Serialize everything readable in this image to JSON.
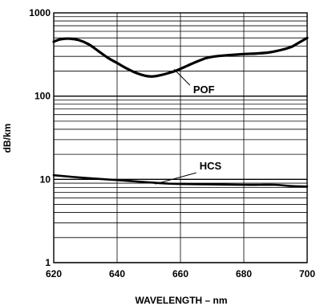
{
  "chart_data": {
    "type": "line",
    "xlabel": "WAVELENGTH – nm",
    "ylabel": "dB/km",
    "xlim": [
      620,
      700
    ],
    "ylim": [
      1,
      1000
    ],
    "y_scale": "log",
    "x_ticks": [
      620,
      640,
      660,
      680,
      700
    ],
    "x_tick_labels": [
      "620",
      "640",
      "660",
      "680",
      "700"
    ],
    "y_ticks": [
      1,
      10,
      100,
      1000
    ],
    "y_tick_labels": [
      "1",
      "10",
      "100",
      "1000"
    ],
    "grid": true,
    "series": [
      {
        "name": "POF",
        "x": [
          620,
          622,
          625,
          628,
          631,
          634,
          637,
          640,
          643,
          646,
          649,
          651,
          653,
          656,
          659,
          662,
          665,
          668,
          671,
          675,
          680,
          684,
          688,
          692,
          695,
          697,
          700
        ],
        "y": [
          450,
          480,
          490,
          470,
          420,
          350,
          290,
          250,
          215,
          190,
          175,
          172,
          176,
          188,
          205,
          230,
          258,
          285,
          300,
          310,
          320,
          325,
          335,
          360,
          390,
          430,
          500
        ]
      },
      {
        "name": "HCS",
        "x": [
          620,
          630,
          640,
          650,
          656,
          660,
          670,
          680,
          685,
          690,
          695,
          700
        ],
        "y": [
          11.2,
          10.4,
          9.8,
          9.2,
          8.9,
          8.8,
          8.7,
          8.6,
          8.6,
          8.6,
          8.3,
          8.2
        ]
      }
    ]
  }
}
